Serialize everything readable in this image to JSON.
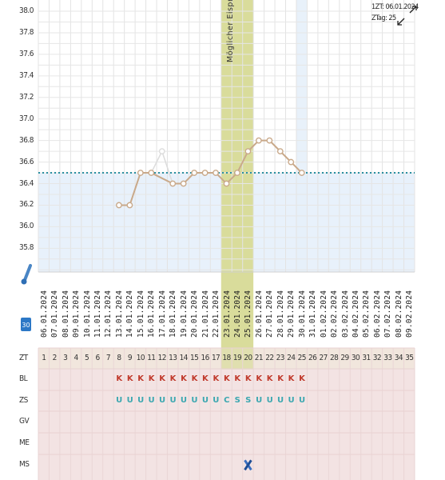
{
  "fertile_window_label": "Möglicher Eisprung",
  "header_info": {
    "zt_line": "1ZT: 06.01.2024",
    "ztag_line": "ZTag: 25"
  },
  "colors": {
    "fertile_band": "#d9dc9b",
    "today_band": "#e6f0fa",
    "curve": "#c9a98a",
    "coverline": "#2a8fa0",
    "low_zone": "#e8f1fb",
    "table_bg": "#f3e3e3",
    "bl": "#c0392b",
    "zs": "#3aa7b0"
  },
  "icons": {
    "thermometer": "thermometer-icon",
    "calendar": "calendar-icon",
    "expand": "expand-icon",
    "collapse": "collapse-icon",
    "ms_marker": "cross-marker-icon"
  },
  "calendar_icon_number": "30",
  "chart_data": {
    "type": "line",
    "x_dates": [
      "06.01.2024",
      "07.01.2024",
      "08.01.2024",
      "09.01.2024",
      "10.01.2024",
      "11.01.2024",
      "12.01.2024",
      "13.01.2024",
      "14.01.2024",
      "15.01.2024",
      "16.01.2024",
      "17.01.2024",
      "18.01.2024",
      "19.01.2024",
      "20.01.2024",
      "21.01.2024",
      "22.01.2024",
      "23.01.2024",
      "24.01.2024",
      "25.01.2024",
      "26.01.2024",
      "27.01.2024",
      "28.01.2024",
      "29.01.2024",
      "30.01.2024",
      "31.01.2024",
      "01.02.2024",
      "02.02.2024",
      "03.02.2024",
      "04.02.2024",
      "05.02.2024",
      "06.02.2024",
      "07.02.2024",
      "08.02.2024",
      "09.02.2024"
    ],
    "cycle_days": [
      1,
      2,
      3,
      4,
      5,
      6,
      7,
      8,
      9,
      10,
      11,
      12,
      13,
      14,
      15,
      16,
      17,
      18,
      19,
      20,
      21,
      22,
      23,
      24,
      25,
      26,
      27,
      28,
      29,
      30,
      31,
      32,
      33,
      34,
      35
    ],
    "y_ticks": [
      "38.0",
      "37.8",
      "37.6",
      "37.4",
      "37.2",
      "37.0",
      "36.8",
      "36.6",
      "36.4",
      "36.2",
      "36.0",
      "35.8"
    ],
    "ylim": [
      35.6,
      38.0
    ],
    "coverline": 36.5,
    "temperatures": [
      null,
      null,
      null,
      null,
      null,
      null,
      null,
      36.2,
      36.2,
      36.5,
      36.5,
      36.7,
      36.4,
      36.4,
      36.5,
      36.5,
      36.5,
      36.4,
      36.5,
      36.7,
      36.8,
      36.8,
      36.7,
      36.6,
      36.5,
      null,
      null,
      null,
      null,
      null,
      null,
      null,
      null,
      null,
      null
    ],
    "excluded_day": 12,
    "fertile_days": [
      18,
      19,
      20
    ],
    "current_day": 25,
    "grid": true
  },
  "table": {
    "rows": [
      {
        "label": "ZT",
        "type": "zt"
      },
      {
        "label": "BL",
        "type": "bl"
      },
      {
        "label": "ZS",
        "type": "zs"
      },
      {
        "label": "GV",
        "type": "empty"
      },
      {
        "label": "ME",
        "type": "empty"
      },
      {
        "label": "MS",
        "type": "ms"
      }
    ],
    "bl_days": [
      8,
      9,
      10,
      11,
      12,
      13,
      14,
      15,
      16,
      17,
      18,
      19,
      20,
      21,
      22,
      23,
      24,
      25
    ],
    "bl_value": "K",
    "zs_values": {
      "8": "U",
      "9": "U",
      "10": "U",
      "11": "U",
      "12": "U",
      "13": "U",
      "14": "U",
      "15": "U",
      "16": "U",
      "17": "U",
      "18": "C",
      "19": "S",
      "20": "S",
      "21": "U",
      "22": "U",
      "23": "U",
      "24": "U",
      "25": "U"
    },
    "ms_day": 20
  }
}
